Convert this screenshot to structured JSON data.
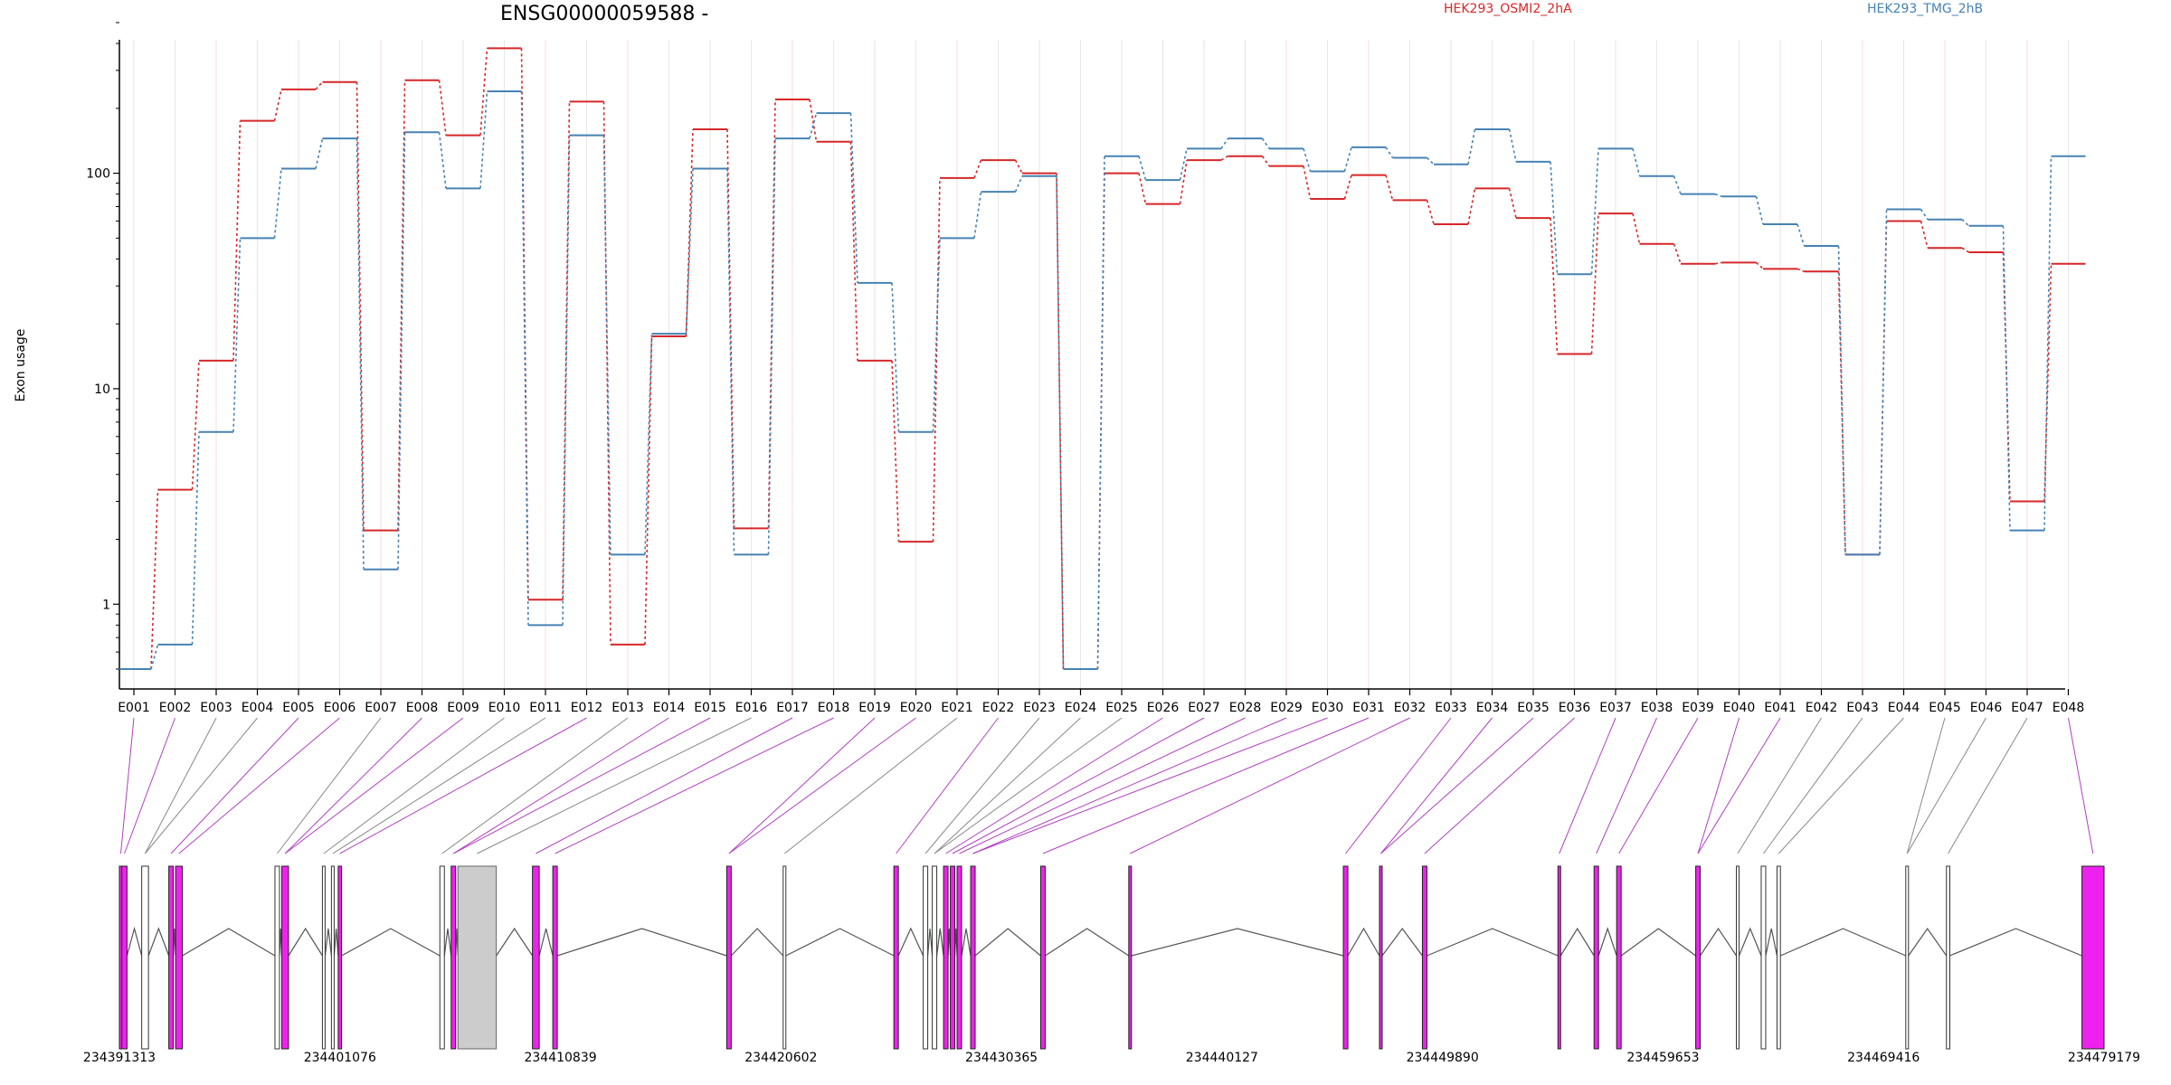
{
  "chart_data": {
    "type": "line",
    "title": "ENSG00000059588 -",
    "ylabel": "Exon usage",
    "yscale": "log",
    "ylim": [
      0.5,
      500
    ],
    "yticks": [
      "1",
      "10",
      "100"
    ],
    "categories": [
      "E001",
      "E002",
      "E003",
      "E004",
      "E005",
      "E006",
      "E007",
      "E008",
      "E009",
      "E010",
      "E011",
      "E012",
      "E013",
      "E014",
      "E015",
      "E016",
      "E017",
      "E018",
      "E019",
      "E020",
      "E021",
      "E022",
      "E023",
      "E024",
      "E025",
      "E026",
      "E027",
      "E028",
      "E029",
      "E030",
      "E031",
      "E032",
      "E033",
      "E034",
      "E035",
      "E036",
      "E037",
      "E038",
      "E039",
      "E040",
      "E041",
      "E042",
      "E043",
      "E044",
      "E045",
      "E046",
      "E047",
      "E048"
    ],
    "series": [
      {
        "name": "HEK293_OSMI2_2hA",
        "color": "#d62728",
        "values": [
          0.5,
          3.4,
          13.5,
          175,
          245,
          265,
          2.2,
          270,
          150,
          380,
          1.05,
          215,
          0.65,
          17.5,
          160,
          2.25,
          220,
          140,
          13.5,
          1.95,
          95,
          115,
          100,
          0.5,
          100,
          72,
          115,
          120,
          108,
          76,
          98,
          75,
          58,
          85,
          62,
          14.5,
          65,
          47,
          38,
          38.5,
          36,
          35,
          1.7,
          60,
          45,
          43,
          3.0,
          38
        ]
      },
      {
        "name": "HEK293_TMG_2hB",
        "color": "#4682b4",
        "values": [
          0.5,
          0.65,
          6.3,
          50,
          105,
          145,
          1.45,
          155,
          85,
          240,
          0.8,
          150,
          1.7,
          18,
          105,
          1.7,
          145,
          190,
          31,
          6.3,
          50,
          82,
          97,
          0.5,
          120,
          93,
          130,
          145,
          130,
          102,
          132,
          118,
          110,
          160,
          113,
          34,
          130,
          97,
          80,
          78,
          58,
          46,
          1.7,
          68,
          61,
          57,
          2.2,
          120
        ]
      }
    ],
    "genomic_coords": [
      "234391313",
      "234401076",
      "234410839",
      "234420602",
      "234430365",
      "234440127",
      "234449890",
      "234459653",
      "234469416",
      "234479179"
    ],
    "gene_model": {
      "start": 234391313,
      "end": 234479179,
      "exon_color": "#ee22ee",
      "intron_color": "#555555",
      "exons": [
        {
          "start": 234391313,
          "end": 234391380,
          "usage": "high"
        },
        {
          "start": 234391420,
          "end": 234391650,
          "usage": "high"
        },
        {
          "start": 234392300,
          "end": 234392600,
          "usage": "low"
        },
        {
          "start": 234393500,
          "end": 234393700,
          "usage": "high"
        },
        {
          "start": 234393800,
          "end": 234394100,
          "usage": "high"
        },
        {
          "start": 234398200,
          "end": 234398400,
          "usage": "low"
        },
        {
          "start": 234398500,
          "end": 234398800,
          "usage": "high"
        },
        {
          "start": 234400300,
          "end": 234400400,
          "usage": "low"
        },
        {
          "start": 234400700,
          "end": 234400800,
          "usage": "low"
        },
        {
          "start": 234401000,
          "end": 234401150,
          "usage": "high"
        },
        {
          "start": 234405500,
          "end": 234405700,
          "usage": "low"
        },
        {
          "start": 234406000,
          "end": 234406200,
          "usage": "high"
        },
        {
          "start": 234406300,
          "end": 234408000,
          "usage": "none"
        },
        {
          "start": 234409600,
          "end": 234409900,
          "usage": "high"
        },
        {
          "start": 234410500,
          "end": 234410700,
          "usage": "high"
        },
        {
          "start": 234418200,
          "end": 234418400,
          "usage": "high"
        },
        {
          "start": 234420700,
          "end": 234420800,
          "usage": "low"
        },
        {
          "start": 234425600,
          "end": 234425800,
          "usage": "high"
        },
        {
          "start": 234426900,
          "end": 234427100,
          "usage": "low"
        },
        {
          "start": 234427300,
          "end": 234427500,
          "usage": "low"
        },
        {
          "start": 234427800,
          "end": 234428000,
          "usage": "high"
        },
        {
          "start": 234428100,
          "end": 234428300,
          "usage": "high"
        },
        {
          "start": 234428400,
          "end": 234428600,
          "usage": "high"
        },
        {
          "start": 234429000,
          "end": 234429200,
          "usage": "high"
        },
        {
          "start": 234432100,
          "end": 234432300,
          "usage": "high"
        },
        {
          "start": 234436000,
          "end": 234436100,
          "usage": "high"
        },
        {
          "start": 234445500,
          "end": 234445700,
          "usage": "high"
        },
        {
          "start": 234447100,
          "end": 234447200,
          "usage": "high"
        },
        {
          "start": 234449000,
          "end": 234449200,
          "usage": "high"
        },
        {
          "start": 234455000,
          "end": 234455100,
          "usage": "high"
        },
        {
          "start": 234456600,
          "end": 234456800,
          "usage": "high"
        },
        {
          "start": 234457600,
          "end": 234457800,
          "usage": "high"
        },
        {
          "start": 234461100,
          "end": 234461300,
          "usage": "high"
        },
        {
          "start": 234462900,
          "end": 234463000,
          "usage": "low"
        },
        {
          "start": 234464000,
          "end": 234464200,
          "usage": "low"
        },
        {
          "start": 234464700,
          "end": 234464850,
          "usage": "low"
        },
        {
          "start": 234470400,
          "end": 234470500,
          "usage": "low"
        },
        {
          "start": 234472200,
          "end": 234472350,
          "usage": "low"
        },
        {
          "start": 234478200,
          "end": 234479179,
          "usage": "high"
        }
      ]
    }
  }
}
